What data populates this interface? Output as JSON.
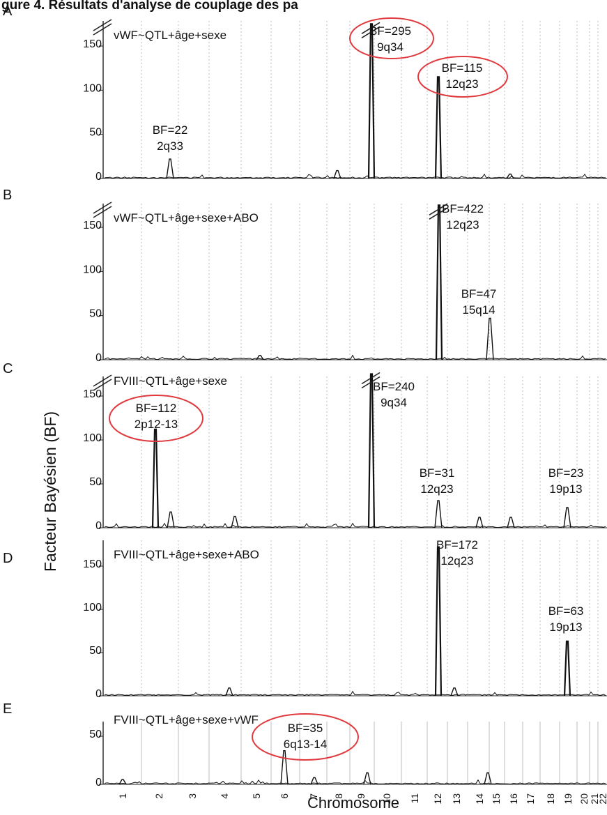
{
  "header_fragment": "gure 4. Résultats d'analyse de couplage des pa",
  "ylabel": "Facteur Bayésien (BF)",
  "xlabel": "Chromosome",
  "chromosome_ticks": [
    "1",
    "2",
    "3",
    "4",
    "5",
    "6",
    "7",
    "8",
    "9",
    "10",
    "11",
    "12",
    "13",
    "14",
    "15",
    "16",
    "17",
    "18",
    "19",
    "20",
    "21",
    "22"
  ],
  "colors": {
    "trace": "#111111",
    "highlight": "#e0393e",
    "grid": "#bdbdbd",
    "axis": "#222222"
  },
  "chart_data": [
    {
      "type": "line",
      "panel": "A",
      "model": "vWF~QTL+âge+sexe",
      "ylim": [
        0,
        175
      ],
      "yticks": [
        0,
        50,
        100,
        150
      ],
      "broken_axis": true,
      "peaks": [
        {
          "chromosome": "2",
          "locus": "2q33",
          "bf": 22,
          "label": "BF=22",
          "circled": false,
          "shown_height": 22
        },
        {
          "chromosome": "7",
          "locus": "",
          "bf": 9,
          "label": "",
          "circled": false,
          "shown_height": 9
        },
        {
          "chromosome": "9",
          "locus": "9q34",
          "bf": 295,
          "label": "BF=295",
          "circled": true,
          "shown_height": 175,
          "truncated": true
        },
        {
          "chromosome": "12",
          "locus": "12q23",
          "bf": 115,
          "label": "BF=115",
          "circled": true,
          "shown_height": 115
        },
        {
          "chromosome": "15",
          "locus": "",
          "bf": 5,
          "label": "",
          "circled": false,
          "shown_height": 5
        }
      ]
    },
    {
      "type": "line",
      "panel": "B",
      "model": "vWF~QTL+âge+sexe+ABO",
      "ylim": [
        0,
        175
      ],
      "yticks": [
        0,
        50,
        100,
        150
      ],
      "broken_axis": true,
      "peaks": [
        {
          "chromosome": "12",
          "locus": "12q23",
          "bf": 422,
          "label": "BF=422",
          "circled": false,
          "shown_height": 175,
          "truncated": true
        },
        {
          "chromosome": "15",
          "locus": "15q14",
          "bf": 47,
          "label": "BF=47",
          "circled": false,
          "shown_height": 47
        },
        {
          "chromosome": "5",
          "locus": "",
          "bf": 5,
          "label": "",
          "circled": false,
          "shown_height": 5
        }
      ]
    },
    {
      "type": "line",
      "panel": "C",
      "model": "FVIII~QTL+âge+sexe",
      "ylim": [
        0,
        175
      ],
      "yticks": [
        0,
        50,
        100,
        150
      ],
      "broken_axis": true,
      "peaks": [
        {
          "chromosome": "2",
          "locus": "2p12-13",
          "bf": 112,
          "label": "BF=112",
          "circled": true,
          "shown_height": 112
        },
        {
          "chromosome": "2",
          "locus": "",
          "bf": 18,
          "label": "",
          "circled": false,
          "shown_height": 18
        },
        {
          "chromosome": "4",
          "locus": "",
          "bf": 13,
          "label": "",
          "circled": false,
          "shown_height": 13
        },
        {
          "chromosome": "9",
          "locus": "9q34",
          "bf": 240,
          "label": "BF=240",
          "circled": false,
          "shown_height": 175,
          "truncated": true
        },
        {
          "chromosome": "12",
          "locus": "12q23",
          "bf": 31,
          "label": "BF=31",
          "circled": false,
          "shown_height": 31
        },
        {
          "chromosome": "14",
          "locus": "",
          "bf": 12,
          "label": "",
          "circled": false,
          "shown_height": 12
        },
        {
          "chromosome": "16",
          "locus": "",
          "bf": 12,
          "label": "",
          "circled": false,
          "shown_height": 12
        },
        {
          "chromosome": "19",
          "locus": "19p13",
          "bf": 23,
          "label": "BF=23",
          "circled": false,
          "shown_height": 23
        }
      ]
    },
    {
      "type": "line",
      "panel": "D",
      "model": "FVIII~QTL+âge+sexe+ABO",
      "ylim": [
        0,
        175
      ],
      "yticks": [
        0,
        50,
        100,
        150
      ],
      "broken_axis": false,
      "peaks": [
        {
          "chromosome": "12",
          "locus": "12q23",
          "bf": 172,
          "label": "BF=172",
          "circled": false,
          "shown_height": 172
        },
        {
          "chromosome": "19",
          "locus": "19p13",
          "bf": 63,
          "label": "BF=63",
          "circled": false,
          "shown_height": 63
        },
        {
          "chromosome": "6",
          "locus": "",
          "bf": 9,
          "label": "",
          "circled": false,
          "shown_height": 9
        },
        {
          "chromosome": "13",
          "locus": "",
          "bf": 9,
          "label": "",
          "circled": false,
          "shown_height": 9
        }
      ]
    },
    {
      "type": "line",
      "panel": "E",
      "model": "FVIII~QTL+âge+sexe+vWF",
      "ylim": [
        0,
        60
      ],
      "yticks": [
        0,
        50
      ],
      "broken_axis": false,
      "peaks": [
        {
          "chromosome": "6",
          "locus": "6q13-14",
          "bf": 35,
          "label": "BF=35",
          "circled": true,
          "shown_height": 35
        },
        {
          "chromosome": "10",
          "locus": "",
          "bf": 12,
          "label": "",
          "circled": false,
          "shown_height": 12
        },
        {
          "chromosome": "14",
          "locus": "",
          "bf": 12,
          "label": "",
          "circled": false,
          "shown_height": 12
        },
        {
          "chromosome": "1",
          "locus": "",
          "bf": 5,
          "label": "",
          "circled": false,
          "shown_height": 5
        },
        {
          "chromosome": "7",
          "locus": "",
          "bf": 7,
          "label": "",
          "circled": false,
          "shown_height": 7
        }
      ]
    }
  ]
}
